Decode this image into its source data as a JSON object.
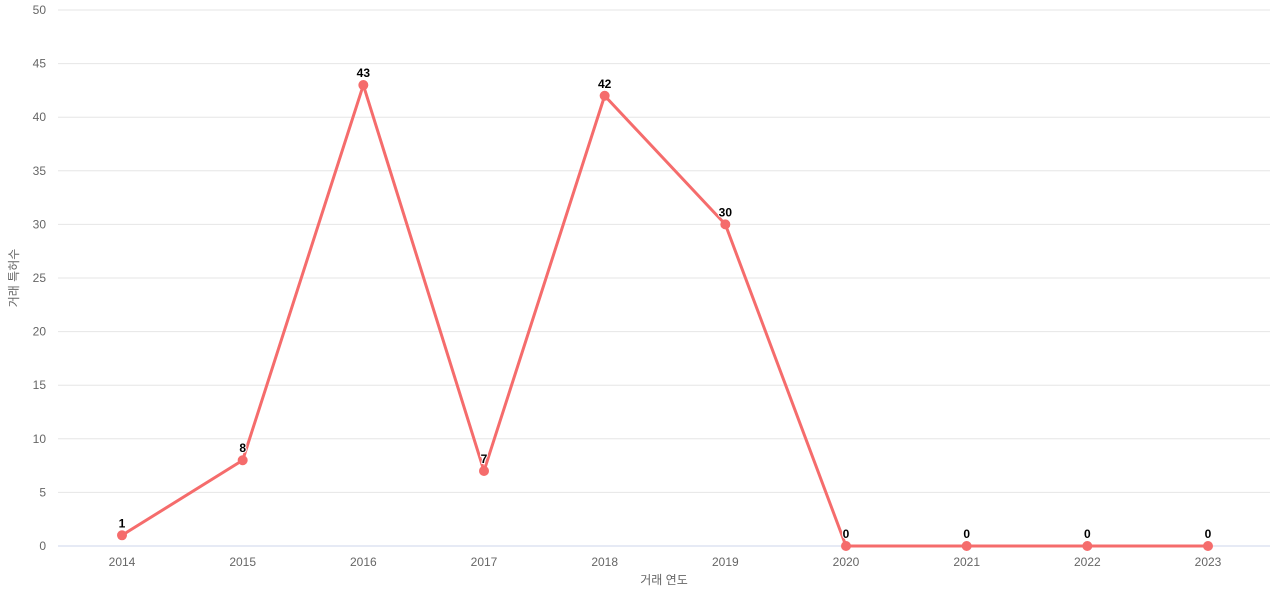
{
  "chart_data": {
    "type": "line",
    "title": "",
    "categories": [
      "2014",
      "2015",
      "2016",
      "2017",
      "2018",
      "2019",
      "2020",
      "2021",
      "2022",
      "2023"
    ],
    "series": [
      {
        "name": "거래 특허수",
        "values": [
          1,
          8,
          43,
          7,
          42,
          30,
          0,
          0,
          0,
          0
        ]
      }
    ],
    "xlabel": "거래 연도",
    "ylabel": "거래 특허수",
    "ylim": [
      0,
      50
    ],
    "ytick_step": 5,
    "yticks": [
      0,
      5,
      10,
      15,
      20,
      25,
      30,
      35,
      40,
      45,
      50
    ],
    "grid": "horizontal-only",
    "legend": "none",
    "data_labels_shown": true,
    "colors": {
      "line": "#f56c6c",
      "marker": "#f56c6c",
      "gridline": "#e6e6e6",
      "axis_line": "#ccd6eb",
      "tick_label": "#666666",
      "axis_title": "#666666",
      "data_label": "#000000",
      "background": "#ffffff"
    }
  }
}
